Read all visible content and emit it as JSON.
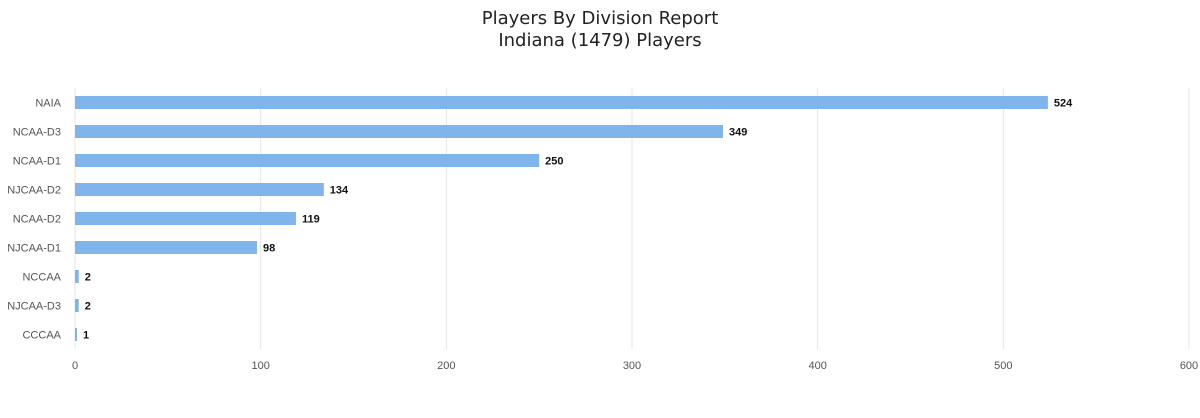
{
  "chart_data": {
    "type": "bar",
    "orientation": "horizontal",
    "title": "Players By Division Report",
    "subtitle": "Indiana (1479) Players",
    "categories": [
      "NAIA",
      "NCAA-D3",
      "NCAA-D1",
      "NJCAA-D2",
      "NCAA-D2",
      "NJCAA-D1",
      "NCCAA",
      "NJCAA-D3",
      "CCCAA"
    ],
    "values": [
      524,
      349,
      250,
      134,
      119,
      98,
      2,
      2,
      1
    ],
    "xlim": [
      0,
      600
    ],
    "xticks": [
      0,
      100,
      200,
      300,
      400,
      500,
      600
    ],
    "xlabel": "",
    "ylabel": "",
    "grid": "vertical",
    "bar_color": "#7fb5ea",
    "grid_color": "#e6e6e6"
  }
}
